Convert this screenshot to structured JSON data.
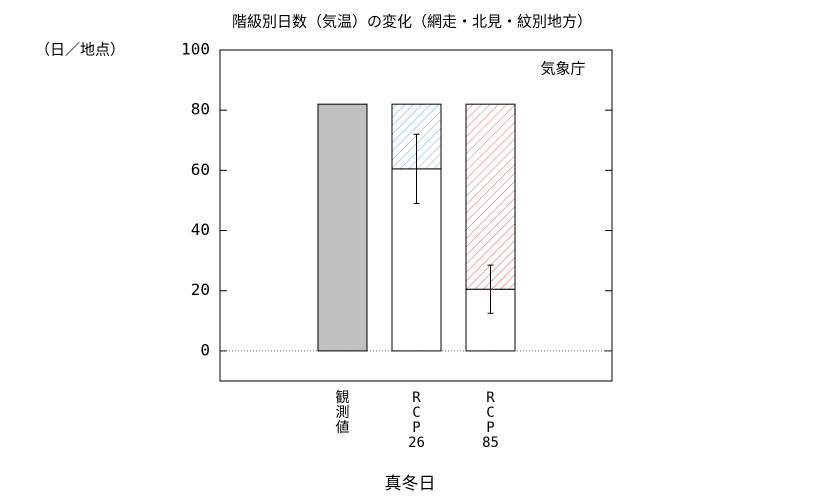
{
  "chart_data": {
    "type": "bar",
    "title": "階級別日数（気温）の変化（網走・北見・紋別地方）",
    "y_unit": "（日／地点）",
    "annotation": "気象庁",
    "xlabel": "真冬日",
    "categories": [
      [
        "観",
        "測",
        "値"
      ],
      [
        "R",
        "C",
        "P",
        "26"
      ],
      [
        "R",
        "C",
        "P",
        "85"
      ]
    ],
    "values": [
      82,
      60.5,
      20.5
    ],
    "errors": [
      null,
      11.5,
      8
    ],
    "change": [
      null,
      21.5,
      61.5
    ],
    "colors": [
      "#c0c0c0",
      "#ffffff",
      "#ffffff"
    ],
    "hatch_colors": [
      null,
      "#6aaed6",
      "#d9675e"
    ],
    "ylim": [
      -10,
      100
    ],
    "yticks": [
      0,
      20,
      40,
      60,
      80,
      100
    ],
    "zero_line": true
  }
}
